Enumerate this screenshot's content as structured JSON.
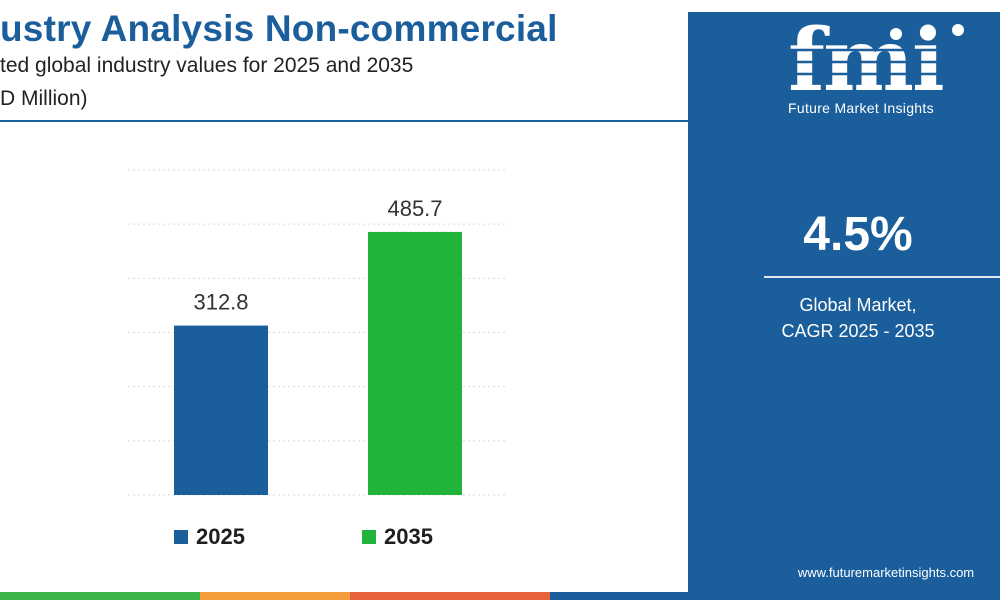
{
  "header": {
    "title": "ustry Analysis Non-commercial",
    "subtitle": "ted global industry values for 2025 and 2035",
    "unit": "D Million)"
  },
  "chart_data": {
    "type": "bar",
    "categories": [
      "2025",
      "2035"
    ],
    "values": [
      312.8,
      485.7
    ],
    "value_labels": [
      "312.8",
      "485.7"
    ],
    "colors": [
      "#1b5e9c",
      "#22b33a"
    ],
    "ylim": [
      0,
      600
    ],
    "grid": true,
    "legend": [
      "2025",
      "2035"
    ],
    "legend_placement": "bottom"
  },
  "side_panel": {
    "background": "#1b5e9c",
    "logo_text": "fmi",
    "logo_subtitle": "Future Market Insights",
    "cagr_value": "4.5%",
    "cagr_label_line1": "Global Market,",
    "cagr_label_line2": "CAGR 2025 - 2035",
    "website": "www.futuremarketinsights.com"
  },
  "bottom_stripe_colors": [
    "#3bb54a",
    "#f39c3c",
    "#e8623a",
    "#1b5e9c"
  ]
}
